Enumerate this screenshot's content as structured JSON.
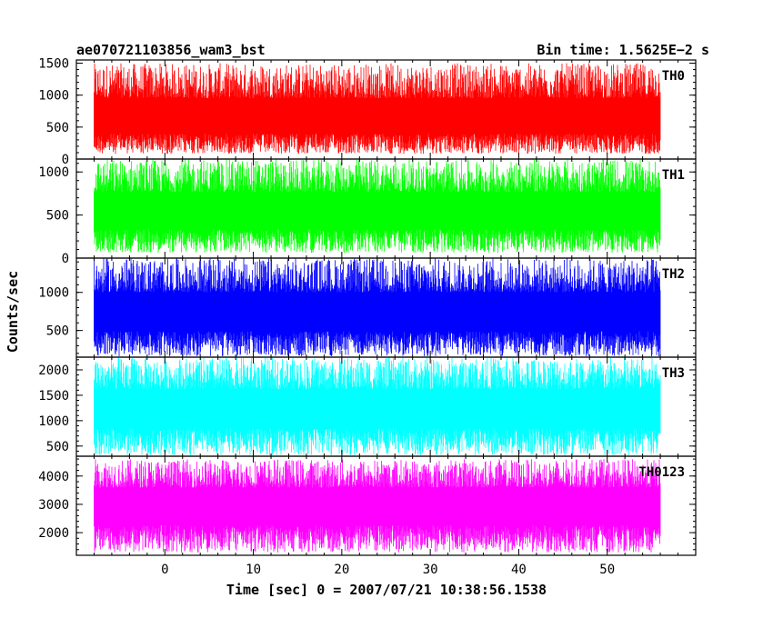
{
  "chart_data": {
    "type": "line",
    "title": "ae070721103856_wam3_bst",
    "subtitle": "Bin time: 1.5625E−2 s",
    "xlabel": "Time [sec] 0 = 2007/07/21 10:38:56.1538",
    "ylabel": "Counts/sec",
    "xlim": [
      -10,
      60
    ],
    "x_ticks": [
      0,
      10,
      20,
      30,
      40,
      50
    ],
    "data_x_range": [
      -8,
      56
    ],
    "grid": false,
    "panels": [
      {
        "name": "TH0",
        "color": "#ff0000",
        "ylim": [
          0,
          1550
        ],
        "y_ticks": [
          0,
          500,
          1000,
          1500
        ],
        "mean": 660,
        "low": 80,
        "high": 1500
      },
      {
        "name": "TH1",
        "color": "#00ff00",
        "ylim": [
          0,
          1150
        ],
        "y_ticks": [
          0,
          500,
          1000
        ],
        "mean": 560,
        "low": 60,
        "high": 1150
      },
      {
        "name": "TH2",
        "color": "#0000ff",
        "ylim": [
          150,
          1450
        ],
        "y_ticks": [
          500,
          1000
        ],
        "mean": 760,
        "low": 160,
        "high": 1450
      },
      {
        "name": "TH3",
        "color": "#00ffff",
        "ylim": [
          300,
          2250
        ],
        "y_ticks": [
          500,
          1000,
          1500,
          2000
        ],
        "mean": 1280,
        "low": 320,
        "high": 2250
      },
      {
        "name": "TH0123",
        "color": "#ff00ff",
        "ylim": [
          1200,
          4700
        ],
        "y_ticks": [
          2000,
          3000,
          4000
        ],
        "mean": 3050,
        "low": 1300,
        "high": 4600
      }
    ]
  }
}
